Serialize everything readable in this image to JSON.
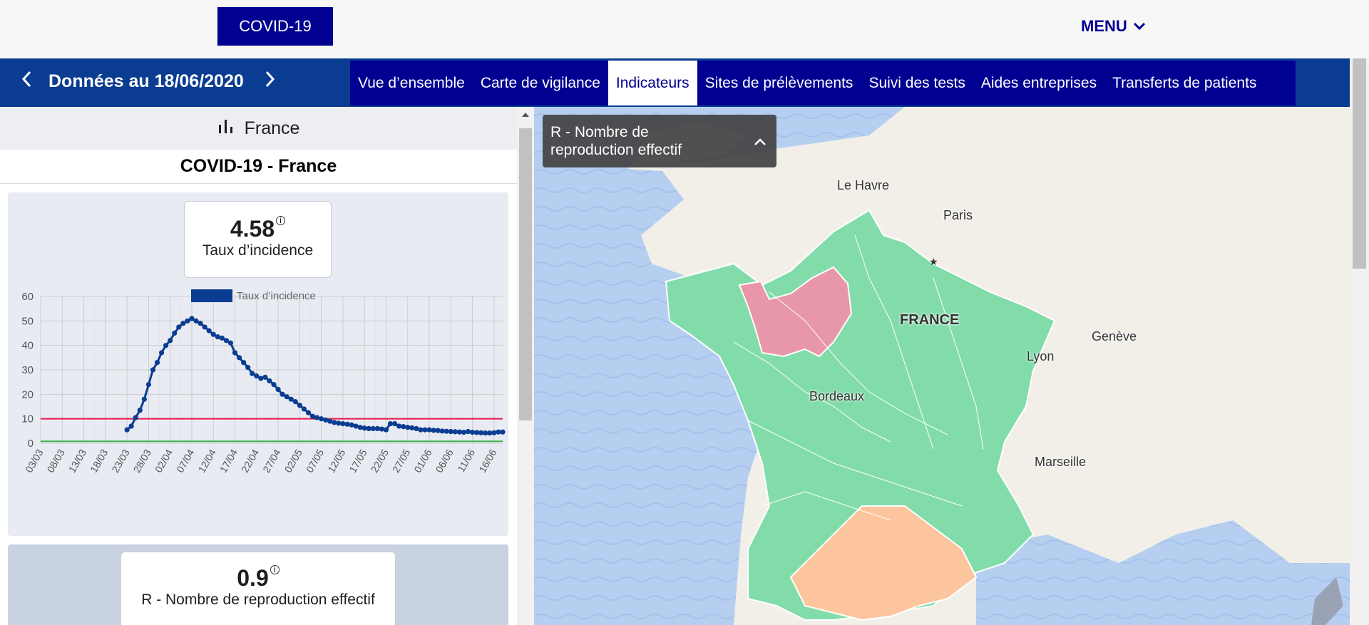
{
  "header": {
    "covid_label": "COVID-19",
    "menu_label": "MENU"
  },
  "nav": {
    "date_label": "Données au 18/06/2020",
    "tabs": [
      {
        "label": "Vue d’ensemble"
      },
      {
        "label": "Carte de vigilance"
      },
      {
        "label": "Indicateurs"
      },
      {
        "label": "Sites de prélèvements"
      },
      {
        "label": "Suivi des tests"
      },
      {
        "label": "Aides entreprises"
      },
      {
        "label": "Transferts de patients"
      }
    ],
    "active_tab": "Indicateurs"
  },
  "side": {
    "region": "France",
    "title": "COVID-19 - France",
    "kpi1": {
      "value": "4.58",
      "label": "Taux d’incidence"
    },
    "kpi2": {
      "value": "0.9",
      "label": "R - Nombre de reproduction effectif"
    },
    "info_glyph": "i"
  },
  "chart_data": {
    "type": "line",
    "legend": "Taux d’incidence",
    "ylim": [
      0,
      60
    ],
    "yticks": [
      "0",
      "10",
      "20",
      "30",
      "40",
      "50",
      "60"
    ],
    "xticks": [
      "03/03",
      "08/03",
      "13/03",
      "18/03",
      "23/03",
      "28/03",
      "02/04",
      "07/04",
      "12/04",
      "17/04",
      "22/04",
      "27/04",
      "02/05",
      "07/05",
      "12/05",
      "17/05",
      "22/05",
      "27/05",
      "01/06",
      "06/06",
      "11/06",
      "16/06"
    ],
    "x_start_day": 0,
    "x_end_day": 107,
    "threshold_red": 10,
    "threshold_green": 0.8,
    "series": [
      {
        "name": "Taux d’incidence",
        "color": "#0a3d91",
        "points": [
          [
            20,
            5.5
          ],
          [
            21,
            7
          ],
          [
            22,
            10.5
          ],
          [
            23,
            13.5
          ],
          [
            24,
            18
          ],
          [
            25,
            24
          ],
          [
            26,
            30
          ],
          [
            27,
            33
          ],
          [
            28,
            37
          ],
          [
            29,
            40
          ],
          [
            30,
            42
          ],
          [
            31,
            45
          ],
          [
            32,
            47.5
          ],
          [
            33,
            49
          ],
          [
            34,
            50
          ],
          [
            35,
            51
          ],
          [
            36,
            50
          ],
          [
            37,
            49
          ],
          [
            38,
            47.5
          ],
          [
            39,
            46
          ],
          [
            40,
            44.5
          ],
          [
            41,
            43.5
          ],
          [
            42,
            43
          ],
          [
            43,
            42
          ],
          [
            44,
            41
          ],
          [
            45,
            37
          ],
          [
            46,
            35
          ],
          [
            47,
            33
          ],
          [
            48,
            31
          ],
          [
            49,
            28.5
          ],
          [
            50,
            27.5
          ],
          [
            51,
            26.5
          ],
          [
            52,
            27
          ],
          [
            53,
            25.5
          ],
          [
            54,
            24
          ],
          [
            55,
            22
          ],
          [
            56,
            20
          ],
          [
            57,
            19
          ],
          [
            58,
            18
          ],
          [
            59,
            17
          ],
          [
            60,
            15.5
          ],
          [
            61,
            14
          ],
          [
            62,
            12.5
          ],
          [
            63,
            11
          ],
          [
            64,
            10.5
          ],
          [
            65,
            10
          ],
          [
            66,
            9.5
          ],
          [
            67,
            9
          ],
          [
            68,
            8.5
          ],
          [
            69,
            8.2
          ],
          [
            70,
            8
          ],
          [
            71,
            7.8
          ],
          [
            72,
            7.5
          ],
          [
            73,
            7
          ],
          [
            74,
            6.5
          ],
          [
            75,
            6.2
          ],
          [
            76,
            6
          ],
          [
            77,
            6
          ],
          [
            78,
            6
          ],
          [
            79,
            5.8
          ],
          [
            80,
            5.5
          ],
          [
            81,
            8
          ],
          [
            82,
            8
          ],
          [
            83,
            7
          ],
          [
            84,
            6.8
          ],
          [
            85,
            6.5
          ],
          [
            86,
            6.3
          ],
          [
            87,
            6
          ],
          [
            88,
            5.5
          ],
          [
            89,
            5.5
          ],
          [
            90,
            5.5
          ],
          [
            91,
            5.3
          ],
          [
            92,
            5.2
          ],
          [
            93,
            5
          ],
          [
            94,
            4.9
          ],
          [
            95,
            4.8
          ],
          [
            96,
            4.7
          ],
          [
            97,
            4.6
          ],
          [
            98,
            4.5
          ],
          [
            99,
            4.8
          ],
          [
            100,
            4.5
          ],
          [
            101,
            4.4
          ],
          [
            102,
            4.3
          ],
          [
            103,
            4.2
          ],
          [
            104,
            4.2
          ],
          [
            105,
            4.3
          ],
          [
            106,
            4.6
          ],
          [
            107,
            4.6
          ]
        ]
      }
    ]
  },
  "map": {
    "indicator_label": "R - Nombre de reproduction effectif",
    "labels": {
      "le_havre": "Le Havre",
      "paris": "Paris",
      "france": "FRANCE",
      "geneve": "Genève",
      "lyon": "Lyon",
      "bordeaux": "Bordeaux",
      "marseille": "Marseille"
    },
    "colors": {
      "green": "#82dcaa",
      "pink": "#e896aa",
      "orange": "#fdc59d",
      "sea": "#b6cff0",
      "land": "#f2efe9"
    }
  }
}
